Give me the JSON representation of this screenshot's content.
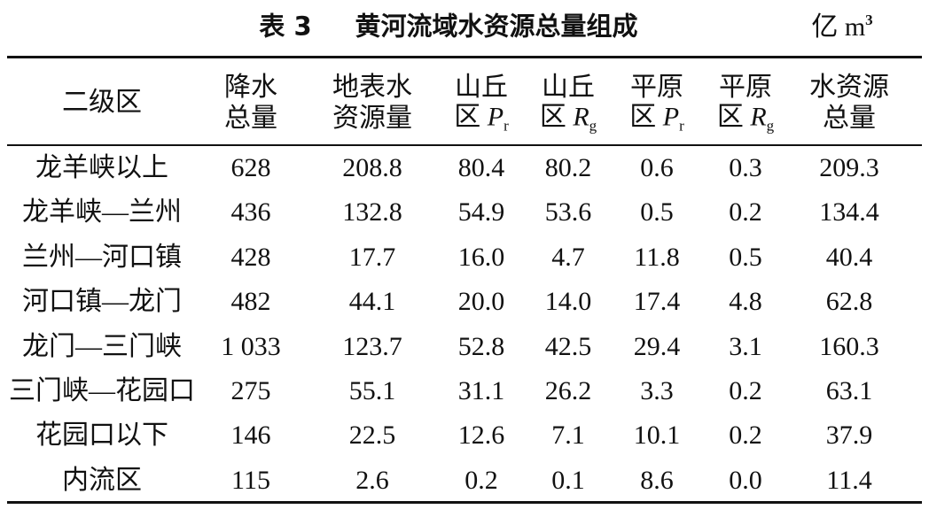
{
  "header": {
    "label": "表 3",
    "title": "黄河流域水资源总量组成",
    "unit": "亿 m",
    "unit_sup": "3"
  },
  "table": {
    "columns": [
      {
        "line1": "二级区"
      },
      {
        "line1": "降水",
        "line2": "总量"
      },
      {
        "line1": "地表水",
        "line2": "资源量"
      },
      {
        "line1": "山丘",
        "line2": "区",
        "symbol": "P",
        "sub": "r"
      },
      {
        "line1": "山丘",
        "line2": "区",
        "symbol": "R",
        "sub": "g"
      },
      {
        "line1": "平原",
        "line2": "区",
        "symbol": "P",
        "sub": "r"
      },
      {
        "line1": "平原",
        "line2": "区",
        "symbol": "R",
        "sub": "g"
      },
      {
        "line1": "水资源",
        "line2": "总量"
      }
    ],
    "rows": [
      [
        "龙羊峡以上",
        "628",
        "208.8",
        "80.4",
        "80.2",
        "0.6",
        "0.3",
        "209.3"
      ],
      [
        "龙羊峡—兰州",
        "436",
        "132.8",
        "54.9",
        "53.6",
        "0.5",
        "0.2",
        "134.4"
      ],
      [
        "兰州—河口镇",
        "428",
        "17.7",
        "16.0",
        "4.7",
        "11.8",
        "0.5",
        "40.4"
      ],
      [
        "河口镇—龙门",
        "482",
        "44.1",
        "20.0",
        "14.0",
        "17.4",
        "4.8",
        "62.8"
      ],
      [
        "龙门—三门峡",
        "1 033",
        "123.7",
        "52.8",
        "42.5",
        "29.4",
        "3.1",
        "160.3"
      ],
      [
        "三门峡—花园口",
        "275",
        "55.1",
        "31.1",
        "26.2",
        "3.3",
        "0.2",
        "63.1"
      ],
      [
        "花园口以下",
        "146",
        "22.5",
        "12.6",
        "7.1",
        "10.1",
        "0.2",
        "37.9"
      ],
      [
        "内流区",
        "115",
        "2.6",
        "0.2",
        "0.1",
        "8.6",
        "0.0",
        "11.4"
      ]
    ]
  }
}
